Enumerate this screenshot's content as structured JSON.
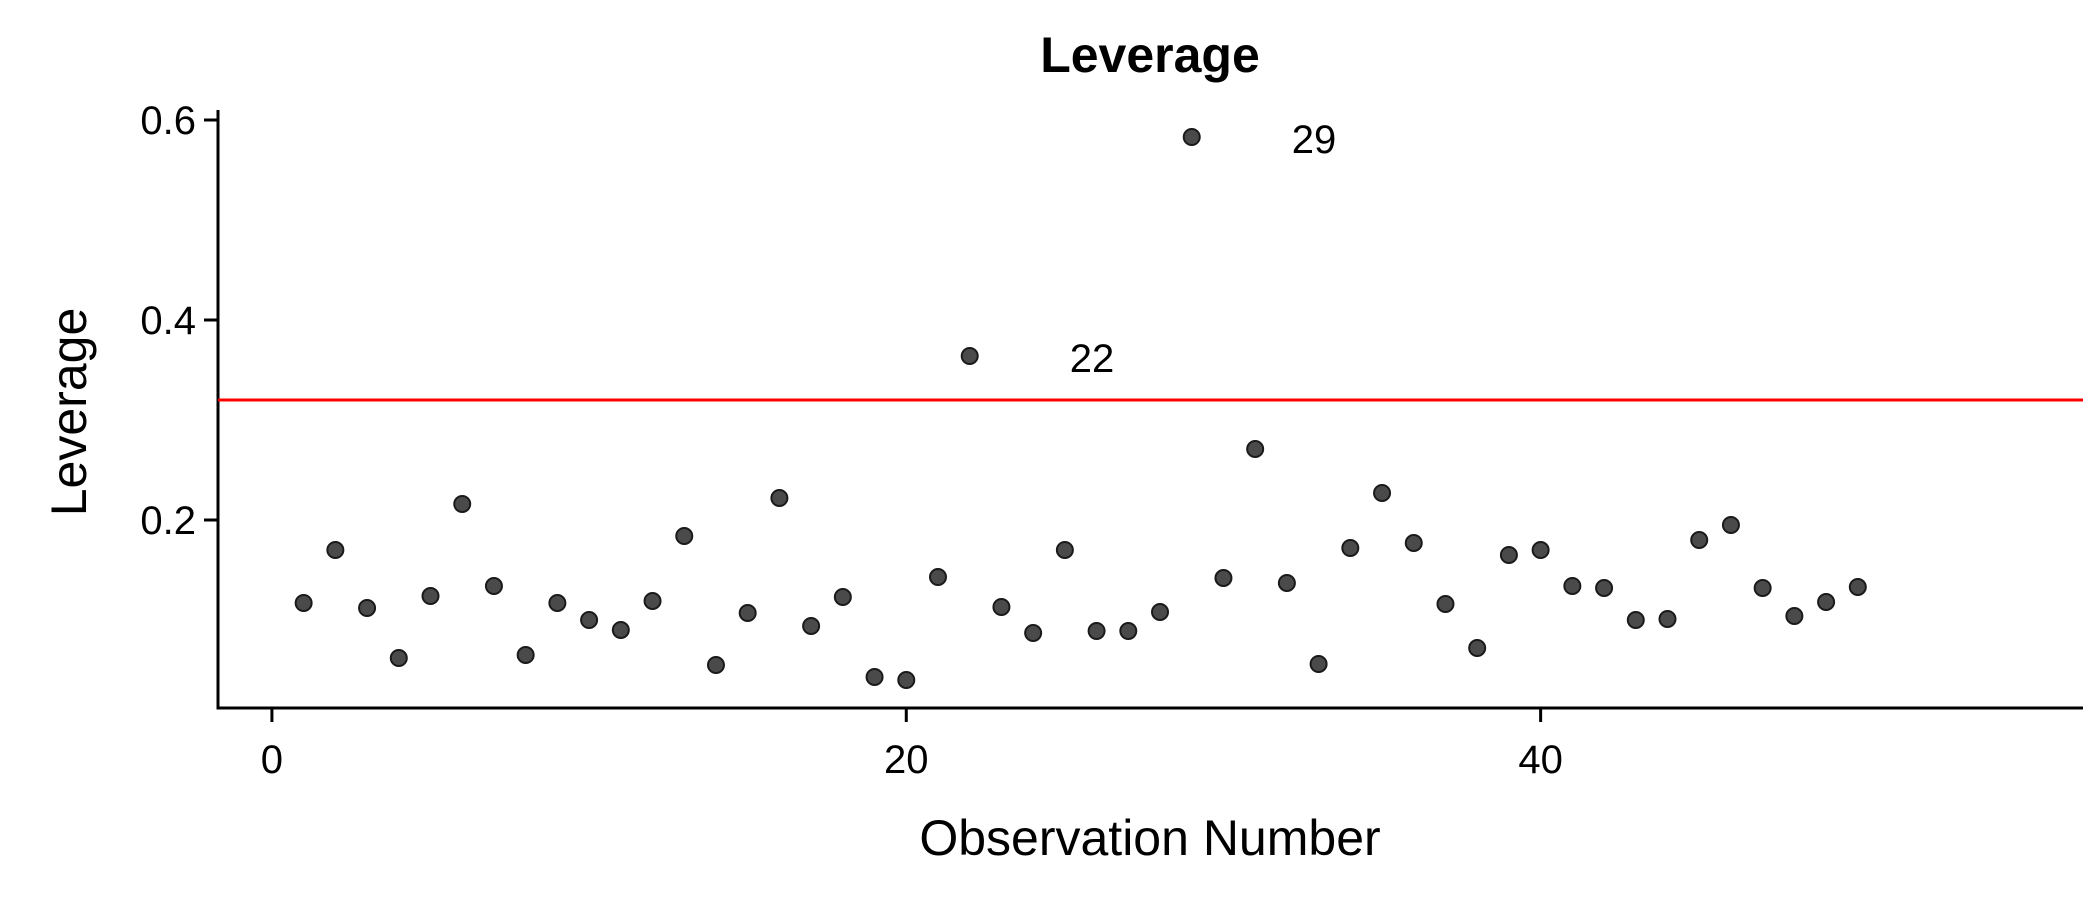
{
  "chart_data": {
    "type": "scatter",
    "title": "Leverage",
    "xlabel": "Observation Number",
    "ylabel": "Leverage",
    "xlim": [
      -1.7,
      57.1
    ],
    "ylim": [
      0.012,
      0.61
    ],
    "x_ticks": [
      0,
      20,
      40
    ],
    "x_tick_labels": [
      "0",
      "20",
      "40"
    ],
    "y_ticks": [
      0.2,
      0.4,
      0.6
    ],
    "y_tick_labels": [
      "0.2",
      "0.4",
      "0.6"
    ],
    "grid": false,
    "threshold": {
      "y": 0.32,
      "color": "#ff0000"
    },
    "point_color": "#4a4a4a",
    "series": [
      {
        "x": [
          1,
          2,
          3,
          4,
          5,
          6,
          7,
          8,
          9,
          10,
          11,
          12,
          13,
          14,
          15,
          16,
          17,
          18,
          19,
          20,
          21,
          22,
          23,
          24,
          25,
          26,
          27,
          28,
          29,
          30,
          31,
          32,
          33,
          34,
          35,
          36,
          37,
          38,
          39,
          40,
          41,
          42,
          43,
          44,
          45,
          46,
          47,
          48,
          49,
          50
        ],
        "values": [
          0.117,
          0.17,
          0.112,
          0.062,
          0.124,
          0.216,
          0.134,
          0.065,
          0.117,
          0.1,
          0.09,
          0.119,
          0.184,
          0.055,
          0.107,
          0.222,
          0.094,
          0.123,
          0.043,
          0.04,
          0.143,
          0.364,
          0.113,
          0.087,
          0.17,
          0.089,
          0.089,
          0.108,
          0.583,
          0.142,
          0.271,
          0.137,
          0.056,
          0.172,
          0.227,
          0.177,
          0.116,
          0.072,
          0.165,
          0.17,
          0.134,
          0.132,
          0.1,
          0.101,
          0.18,
          0.195,
          0.132,
          0.104,
          0.118,
          0.133
        ]
      }
    ],
    "annotations": [
      {
        "x": 22,
        "y": 0.364,
        "text": "22"
      },
      {
        "x": 29,
        "y": 0.583,
        "text": "29"
      }
    ]
  }
}
